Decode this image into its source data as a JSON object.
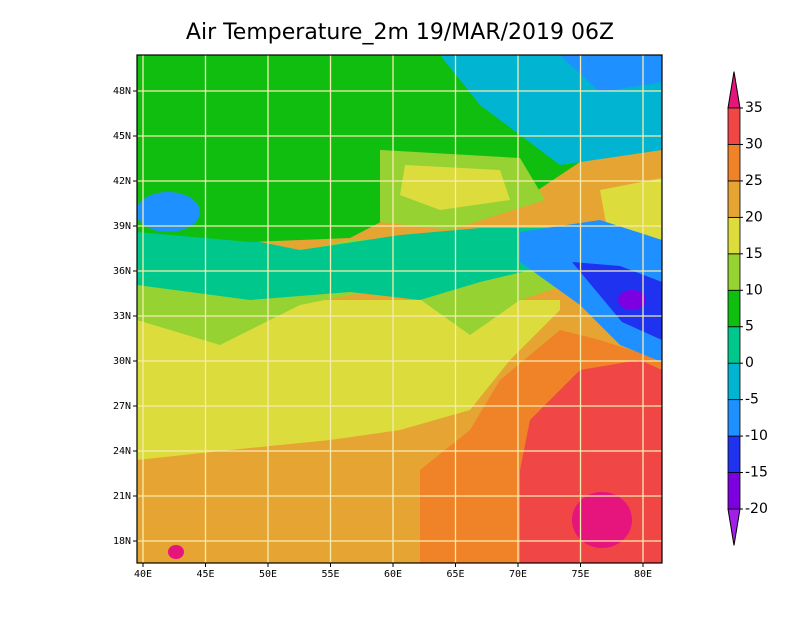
{
  "chart_data": {
    "type": "map",
    "title": "Air Temperature_2m 19/MAR/2019 06Z",
    "xticks": [
      {
        "value": 40,
        "label": "40E"
      },
      {
        "value": 45,
        "label": "45E"
      },
      {
        "value": 50,
        "label": "50E"
      },
      {
        "value": 55,
        "label": "55E"
      },
      {
        "value": 60,
        "label": "60E"
      },
      {
        "value": 65,
        "label": "65E"
      },
      {
        "value": 70,
        "label": "70E"
      },
      {
        "value": 75,
        "label": "75E"
      },
      {
        "value": 80,
        "label": "80E"
      }
    ],
    "yticks": [
      {
        "value": 18,
        "label": "18N"
      },
      {
        "value": 21,
        "label": "21N"
      },
      {
        "value": 24,
        "label": "24N"
      },
      {
        "value": 27,
        "label": "27N"
      },
      {
        "value": 30,
        "label": "30N"
      },
      {
        "value": 33,
        "label": "33N"
      },
      {
        "value": 36,
        "label": "36N"
      },
      {
        "value": 39,
        "label": "39N"
      },
      {
        "value": 42,
        "label": "42N"
      },
      {
        "value": 45,
        "label": "45N"
      },
      {
        "value": 48,
        "label": "48N"
      }
    ],
    "grid": true,
    "colorbar": {
      "levels": [
        -20,
        -15,
        -10,
        -5,
        0,
        5,
        10,
        15,
        20,
        25,
        30,
        35
      ],
      "colors": [
        "#a020e8",
        "#7d00e0",
        "#1e32f0",
        "#1e90ff",
        "#00b4d2",
        "#00c88c",
        "#10be10",
        "#96d232",
        "#dcdc3c",
        "#e6a532",
        "#f08228",
        "#f04646",
        "#e6147d"
      ]
    }
  }
}
